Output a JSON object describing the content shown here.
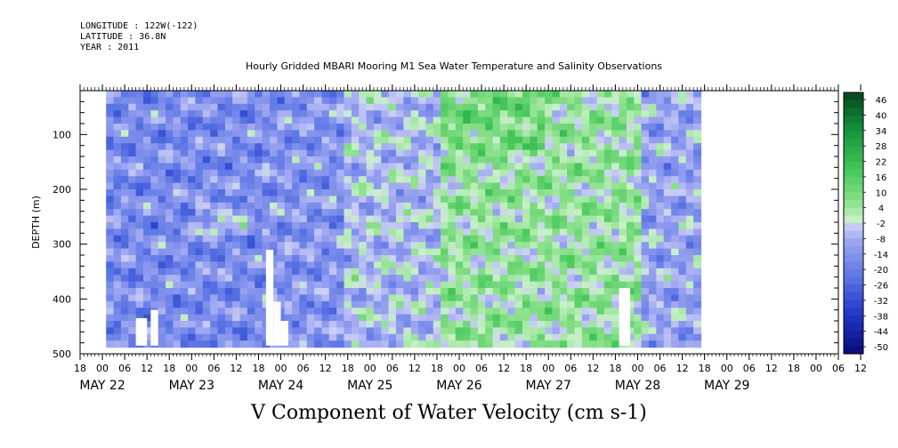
{
  "header": {
    "longitude": "LONGITUDE : 122W(-122)",
    "latitude": "LATITUDE : 36.8N",
    "year": "YEAR : 2011"
  },
  "chart_data": {
    "type": "heatmap",
    "title": "Hourly Gridded MBARI Mooring M1 Sea Water Temperature and Salinity Observations",
    "caption": "V Component of Water Velocity (cm s-1)",
    "ylabel": "DEPTH (m)",
    "yticks": [
      100,
      200,
      300,
      400,
      500
    ],
    "ylim": [
      500,
      20
    ],
    "xlim_hours": [
      0,
      204
    ],
    "hour_tick_labels": [
      "18",
      "00",
      "06",
      "12",
      "18",
      "00",
      "06",
      "12",
      "18",
      "00",
      "06",
      "12",
      "18",
      "00",
      "06",
      "12",
      "18",
      "00",
      "06",
      "12",
      "18",
      "00",
      "06",
      "12",
      "18",
      "00",
      "06",
      "12",
      "18",
      "00",
      "06",
      "12",
      "18",
      "00",
      "06",
      "12"
    ],
    "date_labels": [
      "MAY 22",
      "MAY 23",
      "MAY 24",
      "MAY 25",
      "MAY 26",
      "MAY 27",
      "MAY 28",
      "MAY 29"
    ],
    "data_x_range_hours": [
      7,
      167
    ],
    "data_depth_range": [
      20,
      485
    ],
    "colorbar_labels": [
      "46",
      "40",
      "34",
      "28",
      "22",
      "16",
      "10",
      "4",
      "-2",
      "-8",
      "-14",
      "-20",
      "-26",
      "-32",
      "-38",
      "-44",
      "-50"
    ],
    "colorbar_range": [
      -50,
      50
    ],
    "colors": {
      "negative_light": "#b4b8f0",
      "negative_mid": "#6f82e8",
      "negative_dark": "#1a2fc0",
      "positive_light": "#bff0c0",
      "positive_mid": "#55d66a",
      "positive_dark": "#0b6e2a"
    },
    "grid": false
  }
}
